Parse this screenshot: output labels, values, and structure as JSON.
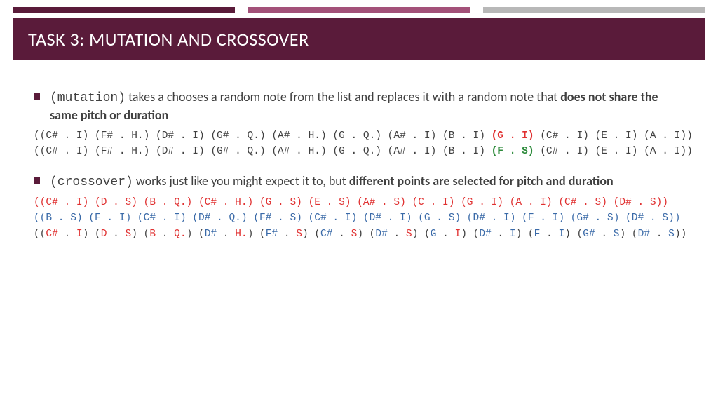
{
  "colors": {
    "band": "#5a1b3a",
    "accent1": "#5a1b3a",
    "accent2": "#a35179",
    "accent3": "#b8b8b8",
    "bullet": "#5a1b3a",
    "text": "#404040",
    "red": "#e03030",
    "green": "#2c8a3a",
    "blue": "#3a6aa8",
    "bg": "#ffffff"
  },
  "title": "TASK 3: MUTATION AND CROSSOVER",
  "bullet1": {
    "code": "(mutation)",
    "mid": "  takes a chooses a random note from the list and replaces it with a random note that ",
    "bold": "does not share the same pitch or duration"
  },
  "mutation_lines": {
    "pre": "((C# . I) (F# . H.) (D# . I) (G# . Q.) (A# . H.) (G . Q.) (A# . I) (B . I) ",
    "hi1": "(G . I)",
    "hi2": "(F . S)",
    "post": " (C# . I) (E . I) (A . I))"
  },
  "bullet2": {
    "code": "(crossover)",
    "mid": "  works just like you might expect it to, but ",
    "bold": "different points are selected for pitch and duration"
  },
  "crossover": {
    "parent1": "((C# . I) (D . S) (B . Q.) (C# . H.) (G . S) (E . S) (A# . S) (C . I) (G . I) (A . I) (C# . S) (D# . S))",
    "parent2": "((B . S) (F . I) (C# . I) (D# . Q.) (F# . S) (C# . I) (D# . I) (G . S) (D# . I) (F . I) (G# . S) (D# . S))",
    "child_tokens": [
      {
        "p": "C#",
        "d": "I",
        "pc": "red",
        "dc": "red"
      },
      {
        "p": "D",
        "d": "S",
        "pc": "red",
        "dc": "red"
      },
      {
        "p": "B",
        "d": "Q.",
        "pc": "red",
        "dc": "red"
      },
      {
        "p": "D#",
        "d": "H.",
        "pc": "blue",
        "dc": "red"
      },
      {
        "p": "F#",
        "d": "S",
        "pc": "blue",
        "dc": "red"
      },
      {
        "p": "C#",
        "d": "S",
        "pc": "blue",
        "dc": "red"
      },
      {
        "p": "D#",
        "d": "S",
        "pc": "blue",
        "dc": "red"
      },
      {
        "p": "G",
        "d": "I",
        "pc": "blue",
        "dc": "red"
      },
      {
        "p": "D#",
        "d": "I",
        "pc": "blue",
        "dc": "blue"
      },
      {
        "p": "F",
        "d": "I",
        "pc": "blue",
        "dc": "blue"
      },
      {
        "p": "G#",
        "d": "S",
        "pc": "blue",
        "dc": "blue"
      },
      {
        "p": "D#",
        "d": "S",
        "pc": "blue",
        "dc": "blue"
      }
    ]
  }
}
